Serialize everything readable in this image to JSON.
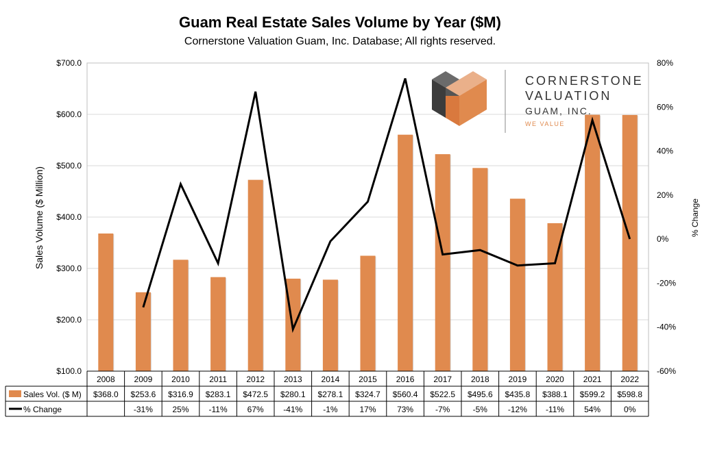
{
  "colors": {
    "bar": "#E08A4E",
    "line": "#000000",
    "grid": "#D9D9D9",
    "logo_accent": "#E08A4E",
    "logo_dark": "#4A4A4A",
    "logo_light": "#E8A87C"
  },
  "logo": {
    "line1": "CORNERSTONE",
    "line2": "VALUATION",
    "line3": "GUAM, INC.",
    "tagline": "WE VALUE"
  },
  "chart_data": {
    "type": "bar",
    "title": "Guam Real Estate Sales Volume by Year ($M)",
    "subtitle": "Cornerstone Valuation Guam, Inc.  Database;  All rights reserved.",
    "ylabel": "Sales Volume ($ Million)",
    "y2label": "% Change",
    "ylim": [
      100,
      700
    ],
    "y2lim": [
      -60,
      80
    ],
    "yticks": [
      "$100.0",
      "$200.0",
      "$300.0",
      "$400.0",
      "$500.0",
      "$600.0",
      "$700.0"
    ],
    "y2ticks": [
      "-60%",
      "-40%",
      "-20%",
      "0%",
      "20%",
      "40%",
      "60%",
      "80%"
    ],
    "grid": "horizontal",
    "categories": [
      "2008",
      "2009",
      "2010",
      "2011",
      "2012",
      "2013",
      "2014",
      "2015",
      "2016",
      "2017",
      "2018",
      "2019",
      "2020",
      "2021",
      "2022"
    ],
    "series": [
      {
        "name": "Sales Vol.  ($ M)",
        "type": "bar",
        "axis": "left",
        "values": [
          368.0,
          253.6,
          316.9,
          283.1,
          472.5,
          280.1,
          278.1,
          324.7,
          560.4,
          522.5,
          495.6,
          435.8,
          388.1,
          599.2,
          598.8
        ],
        "labels": [
          "$368.0",
          "$253.6",
          "$316.9",
          "$283.1",
          "$472.5",
          "$280.1",
          "$278.1",
          "$324.7",
          "$560.4",
          "$522.5",
          "$495.6",
          "$435.8",
          "$388.1",
          "$599.2",
          "$598.8"
        ]
      },
      {
        "name": "% Change",
        "type": "line",
        "axis": "right",
        "values": [
          null,
          -31,
          25,
          -11,
          67,
          -41,
          -1,
          17,
          73,
          -7,
          -5,
          -12,
          -11,
          54,
          0
        ],
        "labels": [
          "",
          "-31%",
          "25%",
          "-11%",
          "67%",
          "-41%",
          "-1%",
          "17%",
          "73%",
          "-7%",
          "-5%",
          "-12%",
          "-11%",
          "54%",
          "0%"
        ]
      }
    ]
  }
}
